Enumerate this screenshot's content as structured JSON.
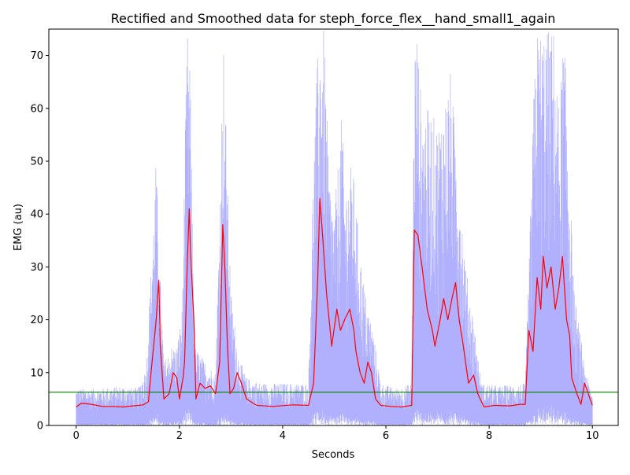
{
  "chart_data": {
    "type": "line",
    "title": "Rectified and Smoothed data for steph_force_flex__hand_small1_again",
    "xlabel": "Seconds",
    "ylabel": "EMG (au)",
    "xlim": [
      -0.53,
      10.5
    ],
    "ylim": [
      0,
      75
    ],
    "xticks": [
      0,
      2,
      4,
      6,
      8,
      10
    ],
    "yticks": [
      0,
      10,
      20,
      30,
      40,
      50,
      60,
      70
    ],
    "grid": false,
    "legend": "none",
    "threshold": {
      "y": 6.3,
      "color": "#008000"
    },
    "series": [
      {
        "role": "rectified",
        "color": "#b0b0ff",
        "envelope": [
          [
            0.0,
            7
          ],
          [
            0.45,
            7
          ],
          [
            0.9,
            7.5
          ],
          [
            1.2,
            7
          ],
          [
            1.35,
            11
          ],
          [
            1.5,
            40
          ],
          [
            1.55,
            51
          ],
          [
            1.6,
            35
          ],
          [
            1.7,
            12
          ],
          [
            1.85,
            15
          ],
          [
            1.95,
            15
          ],
          [
            2.05,
            22
          ],
          [
            2.15,
            75
          ],
          [
            2.2,
            70
          ],
          [
            2.3,
            15
          ],
          [
            2.5,
            12
          ],
          [
            2.7,
            10
          ],
          [
            2.8,
            50
          ],
          [
            2.85,
            75
          ],
          [
            2.9,
            58
          ],
          [
            3.0,
            25
          ],
          [
            3.15,
            13
          ],
          [
            3.3,
            9
          ],
          [
            3.6,
            8
          ],
          [
            4.0,
            8
          ],
          [
            4.5,
            8
          ],
          [
            4.6,
            52
          ],
          [
            4.7,
            75
          ],
          [
            4.8,
            75
          ],
          [
            4.9,
            48
          ],
          [
            5.0,
            40
          ],
          [
            5.15,
            60
          ],
          [
            5.2,
            45
          ],
          [
            5.35,
            50
          ],
          [
            5.5,
            33
          ],
          [
            5.6,
            25
          ],
          [
            5.75,
            18
          ],
          [
            5.9,
            8
          ],
          [
            6.2,
            7
          ],
          [
            6.5,
            8
          ],
          [
            6.55,
            73
          ],
          [
            6.6,
            75
          ],
          [
            6.7,
            60
          ],
          [
            6.85,
            60
          ],
          [
            7.0,
            57
          ],
          [
            7.15,
            62
          ],
          [
            7.25,
            67
          ],
          [
            7.4,
            50
          ],
          [
            7.55,
            30
          ],
          [
            7.7,
            20
          ],
          [
            7.85,
            8
          ],
          [
            8.2,
            7.5
          ],
          [
            8.7,
            8
          ],
          [
            8.8,
            40
          ],
          [
            8.9,
            75
          ],
          [
            9.1,
            75
          ],
          [
            9.25,
            75
          ],
          [
            9.35,
            60
          ],
          [
            9.45,
            75
          ],
          [
            9.55,
            50
          ],
          [
            9.65,
            25
          ],
          [
            9.8,
            15
          ],
          [
            9.9,
            9
          ],
          [
            10.0,
            6
          ]
        ]
      },
      {
        "role": "smoothed",
        "color": "#ff0000",
        "points": [
          [
            0.0,
            3.5
          ],
          [
            0.1,
            4.2
          ],
          [
            0.3,
            4.0
          ],
          [
            0.5,
            3.6
          ],
          [
            0.7,
            3.6
          ],
          [
            0.9,
            3.5
          ],
          [
            1.1,
            3.7
          ],
          [
            1.3,
            3.9
          ],
          [
            1.4,
            4.5
          ],
          [
            1.45,
            10
          ],
          [
            1.5,
            15
          ],
          [
            1.55,
            20
          ],
          [
            1.6,
            27.5
          ],
          [
            1.63,
            15
          ],
          [
            1.7,
            5
          ],
          [
            1.8,
            6
          ],
          [
            1.88,
            10
          ],
          [
            1.95,
            9
          ],
          [
            2.0,
            5
          ],
          [
            2.07,
            9
          ],
          [
            2.1,
            12
          ],
          [
            2.15,
            30
          ],
          [
            2.19,
            41
          ],
          [
            2.22,
            32
          ],
          [
            2.28,
            20
          ],
          [
            2.32,
            5
          ],
          [
            2.4,
            8
          ],
          [
            2.5,
            7
          ],
          [
            2.6,
            7.5
          ],
          [
            2.7,
            6
          ],
          [
            2.78,
            12
          ],
          [
            2.84,
            38
          ],
          [
            2.88,
            30
          ],
          [
            2.93,
            15
          ],
          [
            2.98,
            6
          ],
          [
            3.05,
            7
          ],
          [
            3.12,
            10
          ],
          [
            3.2,
            8
          ],
          [
            3.3,
            5
          ],
          [
            3.5,
            3.8
          ],
          [
            3.8,
            3.6
          ],
          [
            4.2,
            3.9
          ],
          [
            4.5,
            3.8
          ],
          [
            4.6,
            8
          ],
          [
            4.68,
            28
          ],
          [
            4.72,
            43
          ],
          [
            4.78,
            35
          ],
          [
            4.85,
            25
          ],
          [
            4.95,
            15
          ],
          [
            5.05,
            22
          ],
          [
            5.12,
            18
          ],
          [
            5.2,
            20
          ],
          [
            5.3,
            22
          ],
          [
            5.38,
            18
          ],
          [
            5.42,
            14
          ],
          [
            5.5,
            10
          ],
          [
            5.58,
            8
          ],
          [
            5.65,
            12
          ],
          [
            5.72,
            10
          ],
          [
            5.8,
            5
          ],
          [
            5.9,
            3.8
          ],
          [
            6.1,
            3.6
          ],
          [
            6.3,
            3.5
          ],
          [
            6.5,
            3.8
          ],
          [
            6.55,
            37
          ],
          [
            6.62,
            36
          ],
          [
            6.7,
            30
          ],
          [
            6.8,
            22
          ],
          [
            6.9,
            18
          ],
          [
            6.95,
            15
          ],
          [
            7.05,
            20
          ],
          [
            7.12,
            24
          ],
          [
            7.2,
            20
          ],
          [
            7.28,
            24
          ],
          [
            7.35,
            27
          ],
          [
            7.42,
            20
          ],
          [
            7.5,
            15
          ],
          [
            7.6,
            8
          ],
          [
            7.7,
            9.5
          ],
          [
            7.78,
            6
          ],
          [
            7.9,
            3.5
          ],
          [
            8.1,
            3.8
          ],
          [
            8.4,
            3.7
          ],
          [
            8.6,
            4
          ],
          [
            8.7,
            4
          ],
          [
            8.77,
            18
          ],
          [
            8.85,
            14
          ],
          [
            8.93,
            28
          ],
          [
            9.0,
            22
          ],
          [
            9.05,
            32
          ],
          [
            9.12,
            26
          ],
          [
            9.2,
            30
          ],
          [
            9.28,
            22
          ],
          [
            9.35,
            26
          ],
          [
            9.42,
            32
          ],
          [
            9.5,
            20
          ],
          [
            9.56,
            17
          ],
          [
            9.6,
            9
          ],
          [
            9.7,
            6
          ],
          [
            9.78,
            4
          ],
          [
            9.85,
            8
          ],
          [
            9.92,
            6
          ],
          [
            10.0,
            3.8
          ]
        ]
      }
    ]
  }
}
